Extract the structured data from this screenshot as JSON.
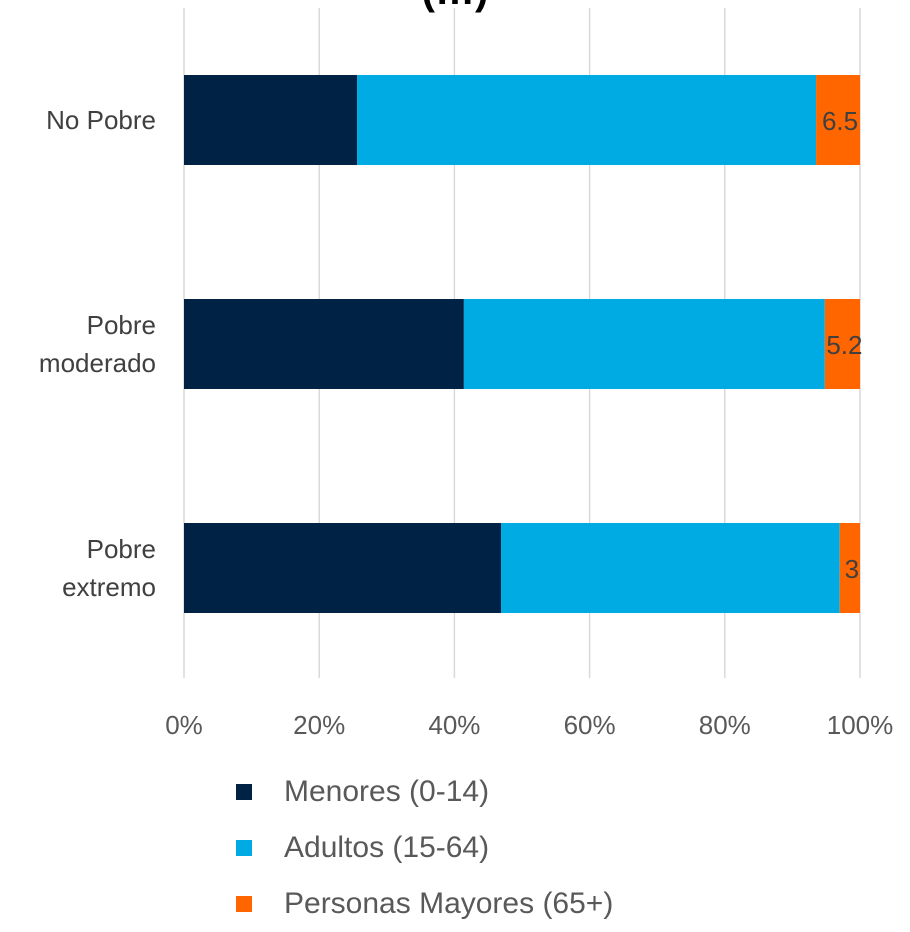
{
  "chart_data": {
    "type": "bar",
    "orientation": "horizontal",
    "stacked": "percent",
    "title": "(…)",
    "categories": [
      "No Pobre",
      "Pobre moderado",
      "Pobre extremo"
    ],
    "series": [
      {
        "name": "Menores (0-14)",
        "values": [
          25.6,
          41.4,
          46.9
        ],
        "color": "#002244"
      },
      {
        "name": "Adultos (15-64)",
        "values": [
          67.9,
          53.4,
          50.1
        ],
        "color": "#00ABE4"
      },
      {
        "name": "Personas Mayores (65+)",
        "values": [
          6.5,
          5.2,
          3.0
        ],
        "color": "#FF6600"
      }
    ],
    "data_labels": {
      "Personas Mayores (65+)": [
        "6.5",
        "5.2",
        "3"
      ]
    },
    "xticks": [
      "0%",
      "20%",
      "40%",
      "60%",
      "80%",
      "100%"
    ],
    "xlim": [
      0,
      100
    ],
    "grid": true,
    "legend_position": "bottom"
  }
}
